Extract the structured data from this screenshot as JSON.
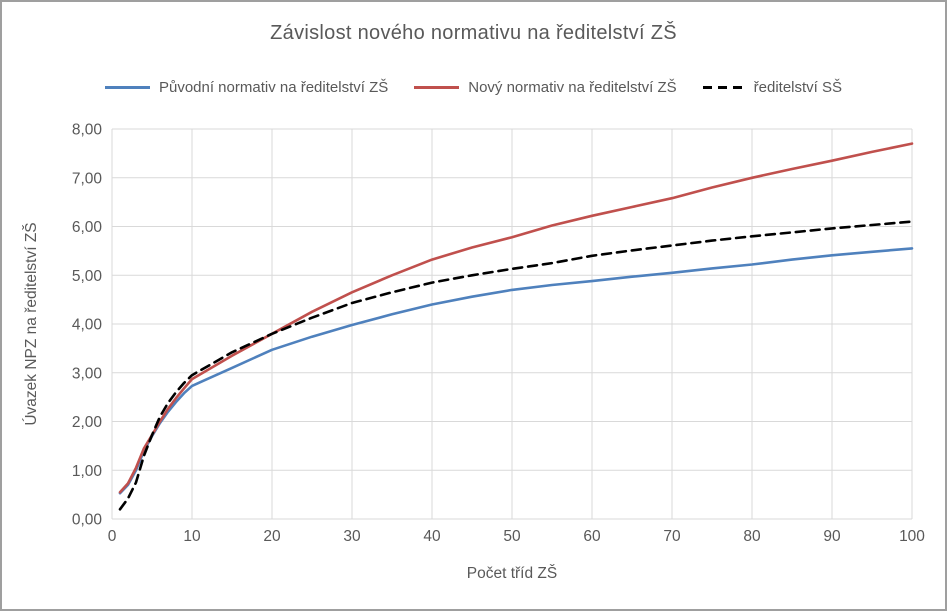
{
  "window": {
    "background_color": "#ffffff",
    "border_color": "#9f9f9f"
  },
  "chart_data": {
    "type": "line",
    "title": "Závislost nového normativu na ředitelství ZŠ",
    "xlabel": "Počet tříd ZŠ",
    "ylabel": "Úvazek NPZ na ředitelství ZŠ",
    "xlim": [
      0,
      100
    ],
    "ylim": [
      0,
      8
    ],
    "grid": true,
    "gridline_color": "#d9d9d9",
    "legend_position": "top",
    "x_ticks": [
      0,
      10,
      20,
      30,
      40,
      50,
      60,
      70,
      80,
      90,
      100
    ],
    "x_tick_labels": [
      "0",
      "10",
      "20",
      "30",
      "40",
      "50",
      "60",
      "70",
      "80",
      "90",
      "100"
    ],
    "y_ticks": [
      0,
      1,
      2,
      3,
      4,
      5,
      6,
      7,
      8
    ],
    "y_tick_labels": [
      "0,00",
      "1,00",
      "2,00",
      "3,00",
      "4,00",
      "5,00",
      "6,00",
      "7,00",
      "8,00"
    ],
    "x": [
      1,
      2,
      3,
      4,
      5,
      6,
      7,
      8,
      9,
      10,
      15,
      20,
      25,
      30,
      35,
      40,
      45,
      50,
      55,
      60,
      65,
      70,
      75,
      80,
      85,
      90,
      95,
      100
    ],
    "series": [
      {
        "name": "Původní normativ na ředitelství ZŠ",
        "color": "#4f81bd",
        "style": "solid",
        "values": [
          0.53,
          0.7,
          1.0,
          1.4,
          1.7,
          1.97,
          2.2,
          2.4,
          2.58,
          2.73,
          3.1,
          3.47,
          3.74,
          3.98,
          4.2,
          4.4,
          4.56,
          4.7,
          4.8,
          4.88,
          4.97,
          5.05,
          5.14,
          5.22,
          5.32,
          5.41,
          5.48,
          5.55
        ]
      },
      {
        "name": "Nový normativ na ředitelství ZŠ",
        "color": "#c0504d",
        "style": "solid",
        "values": [
          0.55,
          0.73,
          1.05,
          1.45,
          1.72,
          2.0,
          2.26,
          2.48,
          2.68,
          2.87,
          3.35,
          3.8,
          4.25,
          4.65,
          5.0,
          5.32,
          5.57,
          5.78,
          6.02,
          6.22,
          6.4,
          6.58,
          6.8,
          7.0,
          7.18,
          7.35,
          7.53,
          7.7
        ]
      },
      {
        "name": "ředitelství SŠ",
        "color": "#000000",
        "style": "dashed",
        "values": [
          0.2,
          0.42,
          0.75,
          1.3,
          1.72,
          2.1,
          2.38,
          2.6,
          2.79,
          2.95,
          3.42,
          3.8,
          4.13,
          4.43,
          4.65,
          4.85,
          5.0,
          5.13,
          5.25,
          5.4,
          5.51,
          5.61,
          5.71,
          5.8,
          5.88,
          5.96,
          6.03,
          6.1
        ]
      }
    ]
  }
}
